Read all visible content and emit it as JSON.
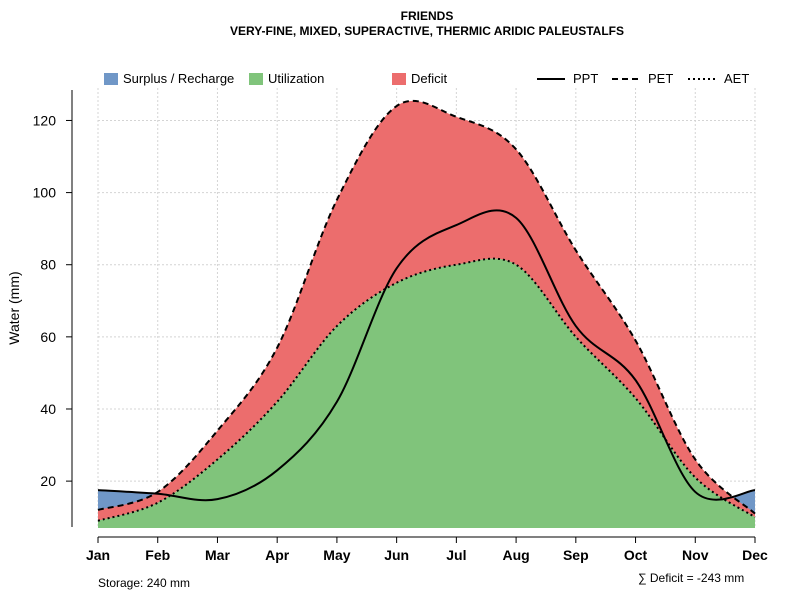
{
  "chart_data": {
    "type": "area",
    "title": "FRIENDS",
    "subtitle": "VERY-FINE, MIXED, SUPERACTIVE, THERMIC ARIDIC PALEUSTALFS",
    "xlabel": "",
    "ylabel": "Water (mm)",
    "categories": [
      "Jan",
      "Feb",
      "Mar",
      "Apr",
      "May",
      "Jun",
      "Jul",
      "Aug",
      "Sep",
      "Oct",
      "Nov",
      "Dec"
    ],
    "ylim": [
      7,
      129
    ],
    "yticks": [
      20,
      40,
      60,
      80,
      100,
      120
    ],
    "grid": true,
    "series": [
      {
        "name": "PPT",
        "style": "solid",
        "values": [
          17.5,
          16.5,
          15,
          23,
          42,
          79,
          91,
          93,
          63,
          48,
          17,
          17.5
        ]
      },
      {
        "name": "PET",
        "style": "dashed",
        "values": [
          12,
          17,
          34,
          57,
          98,
          124,
          121,
          112,
          84,
          59,
          26,
          11
        ]
      },
      {
        "name": "AET",
        "style": "dotted",
        "values": [
          9,
          14,
          26,
          42,
          63,
          75,
          80,
          80,
          60,
          43,
          21,
          10
        ]
      }
    ],
    "fills": [
      {
        "name": "Surplus / Recharge",
        "color": "#7097c7"
      },
      {
        "name": "Utilization",
        "color": "#80c47b"
      },
      {
        "name": "Deficit",
        "color": "#ec6d6d"
      }
    ],
    "legend_position": "top",
    "annotations": {
      "storage": "Storage: 240 mm",
      "deficit": "∑ Deficit = -243 mm"
    }
  }
}
